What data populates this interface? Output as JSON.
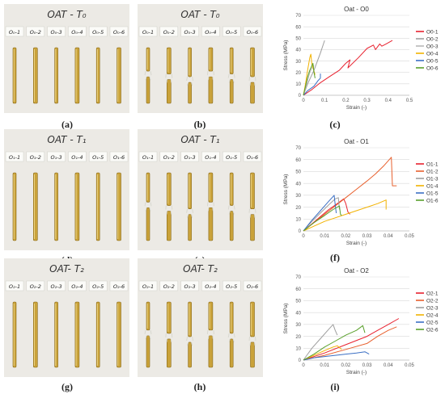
{
  "panels": [
    {
      "label": "(a)",
      "photo_title": "OAT - T₀",
      "specimens": [
        "O₀-1",
        "O₀-2",
        "O₀-3",
        "O₀-4",
        "O₀-5",
        "O₀-6"
      ],
      "state": "intact"
    },
    {
      "label": "(b)",
      "photo_title": "OAT - T₀",
      "specimens": [
        "O₀-1",
        "O₀-2",
        "O₀-3",
        "O₀-4",
        "O₀-5",
        "O₀-6"
      ],
      "state": "broken"
    },
    {
      "label": "(c)"
    },
    {
      "label": "(d)",
      "photo_title": "OAT - T₁",
      "specimens": [
        "O₁-1",
        "O₁-2",
        "O₁-3",
        "O₁-4",
        "O₁-5",
        "O₁-6"
      ],
      "state": "intact"
    },
    {
      "label": "(e)",
      "photo_title": "OAT - T₁",
      "specimens": [
        "O₁-1",
        "O₁-2",
        "O₁-3",
        "O₁-4",
        "O₁-5",
        "O₁-6"
      ],
      "state": "broken"
    },
    {
      "label": "(f)"
    },
    {
      "label": "(g)",
      "photo_title": "OAT- T₂",
      "specimens": [
        "O₂-1",
        "O₂-2",
        "O₂-3",
        "O₂-4",
        "O₂-5",
        "O₂-6"
      ],
      "state": "intact"
    },
    {
      "label": "(h)",
      "photo_title": "OAT- T₂",
      "specimens": [
        "O₂-1",
        "O₂-2",
        "O₂-3",
        "O₂-4",
        "O₂-5",
        "O₂-6"
      ],
      "state": "broken"
    },
    {
      "label": "(i)"
    }
  ],
  "chart_data": [
    {
      "type": "line",
      "title": "Oat - O0",
      "xlabel": "Strain (-)",
      "ylabel": "Stress (MPa)",
      "xlim": [
        0,
        0.5
      ],
      "ylim": [
        0,
        70
      ],
      "xticks": [
        "0",
        "0.1",
        "0.2",
        "0.3",
        "0.4",
        "0.5"
      ],
      "yticks": [
        "0",
        "10",
        "20",
        "30",
        "40",
        "50",
        "60",
        "70"
      ],
      "grid": "horizontal",
      "legend": "right",
      "series": [
        {
          "name": "O0-1",
          "color": "#e8212f",
          "points": [
            [
              0,
              0
            ],
            [
              0.04,
              5
            ],
            [
              0.08,
              11
            ],
            [
              0.12,
              16
            ],
            [
              0.17,
              22
            ],
            [
              0.2,
              28
            ],
            [
              0.22,
              31
            ],
            [
              0.21,
              24
            ],
            [
              0.26,
              33
            ],
            [
              0.3,
              41
            ],
            [
              0.33,
              44
            ],
            [
              0.34,
              40
            ],
            [
              0.36,
              45
            ],
            [
              0.37,
              43
            ],
            [
              0.39,
              45
            ],
            [
              0.42,
              48
            ]
          ]
        },
        {
          "name": "O0-2",
          "color": "#9e9e9e",
          "points": [
            [
              0,
              0
            ],
            [
              0.02,
              10
            ],
            [
              0.05,
              22
            ],
            [
              0.08,
              37
            ],
            [
              0.1,
              48
            ]
          ]
        },
        {
          "name": "O0-3",
          "color": "#b8b8b8",
          "points": [
            [
              0,
              0
            ],
            [
              0.01,
              6
            ],
            [
              0.02,
              13
            ],
            [
              0.03,
              20
            ],
            [
              0.04,
              24
            ],
            [
              0.05,
              26
            ]
          ]
        },
        {
          "name": "O0-4",
          "color": "#f2b200",
          "points": [
            [
              0,
              0
            ],
            [
              0.01,
              10
            ],
            [
              0.02,
              22
            ],
            [
              0.03,
              33
            ],
            [
              0.035,
              36
            ],
            [
              0.04,
              27
            ],
            [
              0.05,
              21
            ],
            [
              0.055,
              18
            ]
          ]
        },
        {
          "name": "O0-5",
          "color": "#3b6fc4",
          "points": [
            [
              0,
              0
            ],
            [
              0.02,
              4
            ],
            [
              0.05,
              8
            ],
            [
              0.07,
              13
            ],
            [
              0.08,
              15
            ],
            [
              0.08,
              19
            ]
          ]
        },
        {
          "name": "O0-6",
          "color": "#5aa02c",
          "points": [
            [
              0,
              0
            ],
            [
              0.01,
              8
            ],
            [
              0.02,
              16
            ],
            [
              0.03,
              22
            ],
            [
              0.04,
              26
            ],
            [
              0.045,
              28
            ],
            [
              0.05,
              20
            ],
            [
              0.055,
              15
            ]
          ]
        }
      ]
    },
    {
      "type": "line",
      "title": "Oat - O1",
      "xlabel": "Strain (-)",
      "ylabel": "Stress (MPa)",
      "xlim": [
        0,
        0.05
      ],
      "ylim": [
        0,
        70
      ],
      "xticks": [
        "0",
        "0.01",
        "0.02",
        "0.03",
        "0.04",
        "0.05"
      ],
      "yticks": [
        "0",
        "10",
        "20",
        "30",
        "40",
        "50",
        "60",
        "70"
      ],
      "grid": "horizontal",
      "legend": "right",
      "series": [
        {
          "name": "O1-1",
          "color": "#e8212f",
          "points": [
            [
              0,
              0
            ],
            [
              0.004,
              6
            ],
            [
              0.008,
              12
            ],
            [
              0.012,
              18
            ],
            [
              0.016,
              23
            ],
            [
              0.019,
              27
            ],
            [
              0.02,
              23
            ],
            [
              0.021,
              16
            ],
            [
              0.022,
              14
            ]
          ]
        },
        {
          "name": "O1-2",
          "color": "#e8612f",
          "points": [
            [
              0,
              0
            ],
            [
              0.005,
              7
            ],
            [
              0.01,
              14
            ],
            [
              0.015,
              21
            ],
            [
              0.02,
              28
            ],
            [
              0.025,
              35
            ],
            [
              0.03,
              42
            ],
            [
              0.034,
              48
            ],
            [
              0.038,
              55
            ],
            [
              0.0415,
              62
            ],
            [
              0.042,
              38
            ],
            [
              0.043,
              38
            ],
            [
              0.044,
              38
            ]
          ]
        },
        {
          "name": "O1-3",
          "color": "#9e9e9e",
          "points": [
            [
              0,
              0
            ],
            [
              0.004,
              8
            ],
            [
              0.008,
              15
            ],
            [
              0.012,
              22
            ],
            [
              0.015,
              27
            ],
            [
              0.0165,
              28
            ],
            [
              0.017,
              18
            ]
          ]
        },
        {
          "name": "O1-4",
          "color": "#f2b200",
          "points": [
            [
              0,
              0
            ],
            [
              0.005,
              4
            ],
            [
              0.01,
              8
            ],
            [
              0.015,
              11
            ],
            [
              0.02,
              14
            ],
            [
              0.025,
              17
            ],
            [
              0.03,
              20
            ],
            [
              0.035,
              23
            ],
            [
              0.039,
              26
            ],
            [
              0.039,
              18
            ]
          ]
        },
        {
          "name": "O1-5",
          "color": "#3b6fc4",
          "points": [
            [
              0,
              0
            ],
            [
              0.004,
              9
            ],
            [
              0.008,
              17
            ],
            [
              0.012,
              25
            ],
            [
              0.0145,
              30
            ],
            [
              0.015,
              22
            ],
            [
              0.0155,
              15
            ]
          ]
        },
        {
          "name": "O1-6",
          "color": "#5aa02c",
          "points": [
            [
              0,
              0
            ],
            [
              0.005,
              7
            ],
            [
              0.01,
              13
            ],
            [
              0.014,
              18
            ],
            [
              0.017,
              21
            ],
            [
              0.0175,
              14
            ],
            [
              0.018,
              13
            ]
          ]
        }
      ]
    },
    {
      "type": "line",
      "title": "Oat - O2",
      "xlabel": "Strain (-)",
      "ylabel": "Stress (MPa)",
      "xlim": [
        0,
        0.05
      ],
      "ylim": [
        0,
        70
      ],
      "xticks": [
        "0",
        "0.01",
        "0.02",
        "0.03",
        "0.04",
        "0.05"
      ],
      "yticks": [
        "0",
        "10",
        "20",
        "30",
        "40",
        "50",
        "60",
        "70"
      ],
      "grid": "horizontal",
      "legend": "right",
      "series": [
        {
          "name": "O2-1",
          "color": "#e8212f",
          "points": [
            [
              0,
              0
            ],
            [
              0.01,
              6
            ],
            [
              0.02,
              13
            ],
            [
              0.03,
              20
            ],
            [
              0.035,
              25
            ],
            [
              0.04,
              30
            ],
            [
              0.045,
              35
            ]
          ]
        },
        {
          "name": "O2-2",
          "color": "#e8612f",
          "points": [
            [
              0,
              0
            ],
            [
              0.01,
              4
            ],
            [
              0.02,
              9
            ],
            [
              0.03,
              14
            ],
            [
              0.035,
              20
            ],
            [
              0.04,
              25
            ],
            [
              0.044,
              28
            ]
          ]
        },
        {
          "name": "O2-3",
          "color": "#9e9e9e",
          "points": [
            [
              0,
              0
            ],
            [
              0.004,
              10
            ],
            [
              0.008,
              18
            ],
            [
              0.012,
              26
            ],
            [
              0.014,
              30
            ],
            [
              0.015,
              25
            ],
            [
              0.016,
              21
            ]
          ]
        },
        {
          "name": "O2-4",
          "color": "#f2b200",
          "points": [
            [
              0,
              0
            ],
            [
              0.005,
              4
            ],
            [
              0.01,
              8
            ],
            [
              0.014,
              11
            ],
            [
              0.016,
              12
            ],
            [
              0.018,
              9
            ]
          ]
        },
        {
          "name": "O2-5",
          "color": "#3b6fc4",
          "points": [
            [
              0,
              0
            ],
            [
              0.005,
              2
            ],
            [
              0.01,
              3
            ],
            [
              0.015,
              4
            ],
            [
              0.02,
              5
            ],
            [
              0.025,
              6
            ],
            [
              0.029,
              7
            ],
            [
              0.031,
              5
            ]
          ]
        },
        {
          "name": "O2-6",
          "color": "#5aa02c",
          "points": [
            [
              0,
              0
            ],
            [
              0.005,
              5
            ],
            [
              0.01,
              11
            ],
            [
              0.015,
              16
            ],
            [
              0.02,
              21
            ],
            [
              0.025,
              25
            ],
            [
              0.028,
              29
            ],
            [
              0.029,
              23
            ]
          ]
        }
      ]
    }
  ]
}
